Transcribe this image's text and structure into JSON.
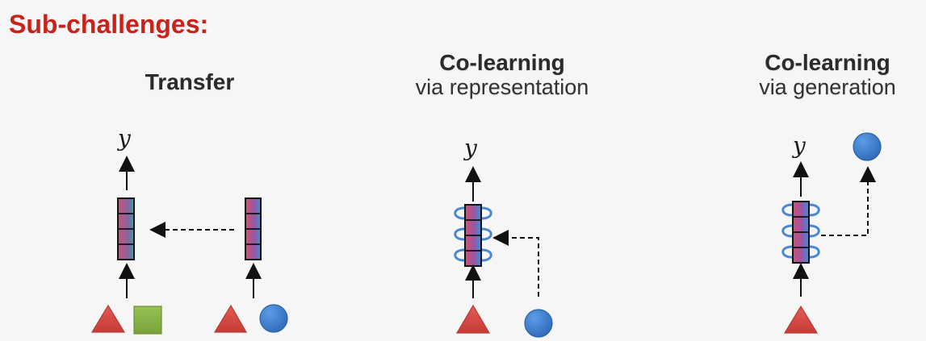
{
  "slide": {
    "heading": "Sub-challenges:"
  },
  "panels": [
    {
      "id": "transfer",
      "title": "Transfer",
      "subtitle": "",
      "output_label": "y"
    },
    {
      "id": "colearning-representation",
      "title": "Co-learning",
      "subtitle": "via representation",
      "output_label": "y"
    },
    {
      "id": "colearning-generation",
      "title": "Co-learning",
      "subtitle": "via generation",
      "output_label": "y"
    }
  ],
  "icons": {
    "triangle": "triangle-icon",
    "square": "square-icon",
    "circle": "circle-icon",
    "arrow": "arrow-icon",
    "coil": "coil-icon"
  },
  "colors": {
    "heading": "#c8231b",
    "triangle": "#d6443f",
    "square": "#88b243",
    "circle": "#3a78cb",
    "coil": "#4b88d3",
    "representation_gradient": [
      "#d94f6f",
      "#3f8ecf",
      "#46a39b"
    ],
    "arrow": "#111111"
  }
}
